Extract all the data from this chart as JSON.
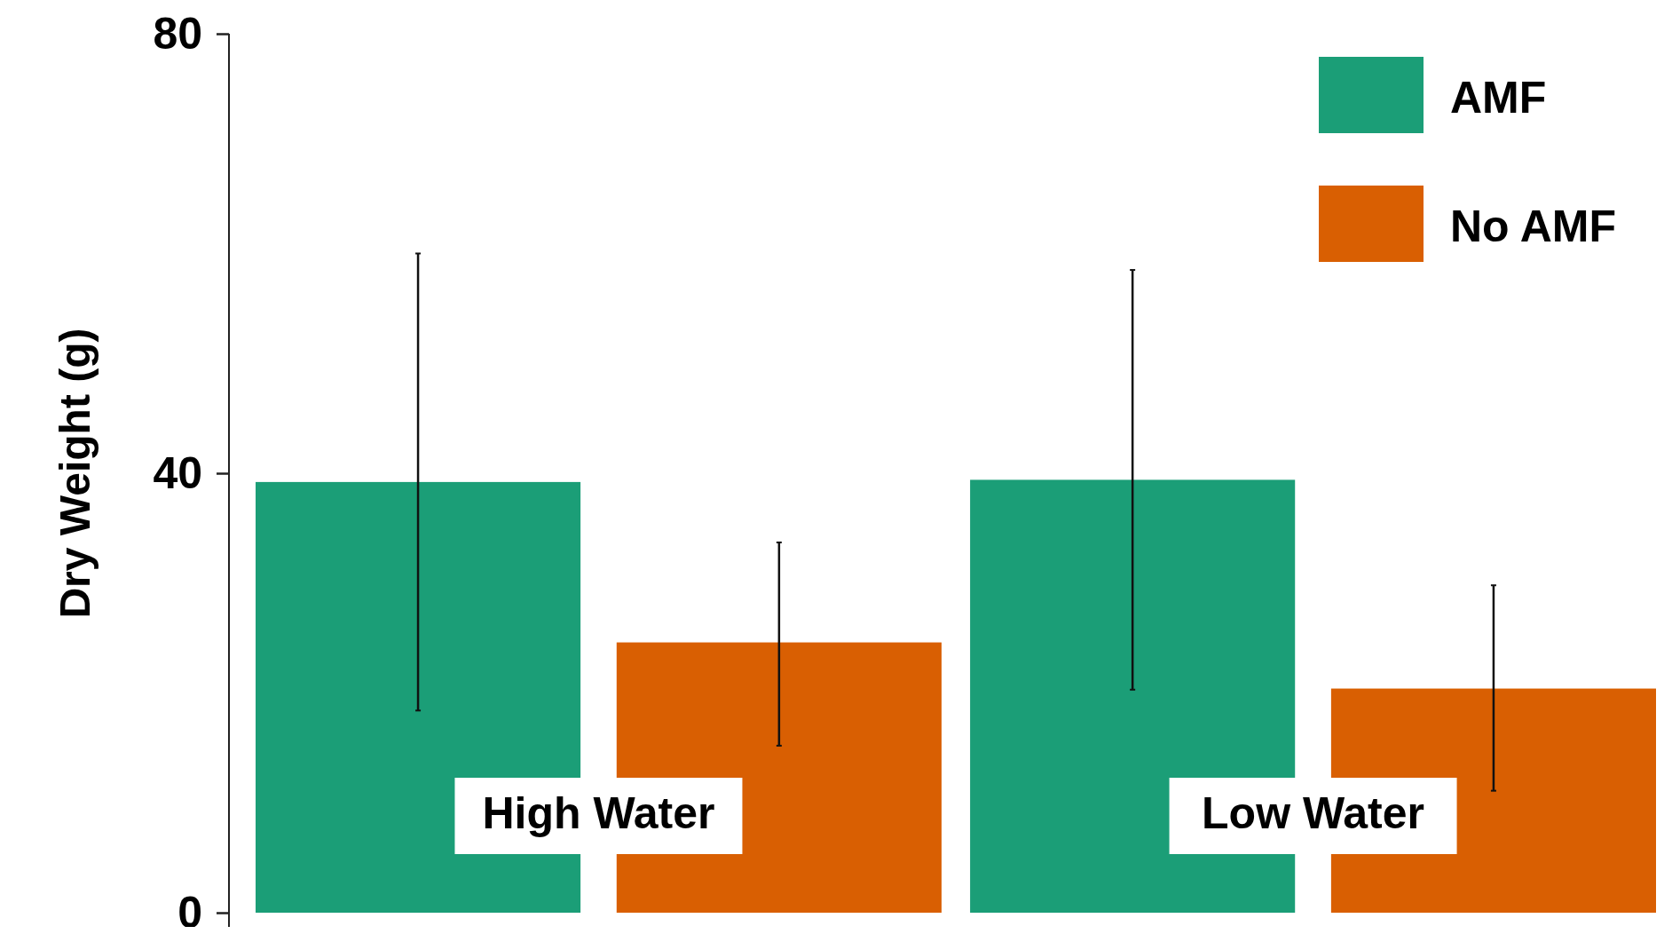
{
  "chart_data": {
    "type": "bar",
    "ylabel": "Dry Weight (g)",
    "categories": [
      "High Water",
      "Low Water"
    ],
    "series": [
      {
        "name": "AMF",
        "color": "#1b9e77",
        "values": [
          39.2,
          39.4
        ],
        "errors": [
          [
            18.4,
            60.0
          ],
          [
            20.3,
            58.5
          ]
        ]
      },
      {
        "name": "No AMF",
        "color": "#d95f02",
        "values": [
          24.6,
          20.4
        ],
        "errors": [
          [
            15.2,
            33.7
          ],
          [
            11.1,
            29.8
          ]
        ]
      }
    ],
    "ylim": [
      0,
      80
    ],
    "yticks": [
      0,
      40,
      80
    ],
    "grid": false,
    "legend": "top right"
  }
}
